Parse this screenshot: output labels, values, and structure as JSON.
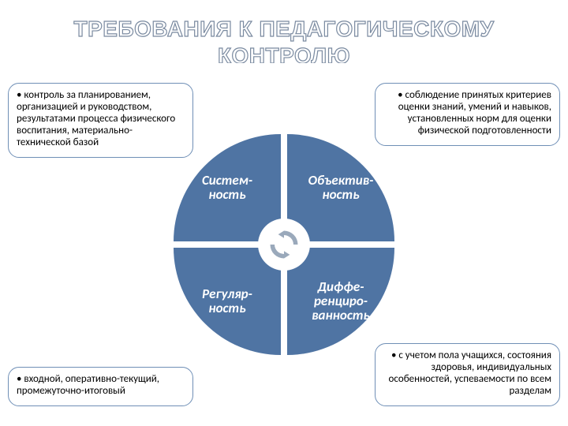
{
  "title_line1": "ТРЕБОВАНИЯ К ПЕДАГОГИЧЕСКОМУ",
  "title_line2": "КОНТРОЛЮ",
  "title_fill": "#ffffff",
  "title_stroke": "#7a8aa0",
  "title_fontsize": 28,
  "circle": {
    "color": "#4f74a3",
    "gap_color": "#ffffff",
    "hub_bg": "#ffffff",
    "arrow_color": "#9aa9bb",
    "quadrants": {
      "tl": "Систем-\nность",
      "tr": "Объектив-\nность",
      "bl": "Регуляр-\nность",
      "br": "Диффе-\nренциро-\nванность"
    },
    "label_fontsize": 17
  },
  "cards": {
    "border_color": "#6f8fb6",
    "font_size": 13,
    "tl": "контроль за планированием, организацией и руководством, результатами процесса физического воспитания, материально-технической базой",
    "tr": "соблюдение принятых критериев оценки знаний, умений и навыков, установленных норм для оценки физической подготовленности",
    "bl": "входной, оперативно-текущий, промежуточно-итоговый",
    "br": "с учетом пола учащихся, состояния здоровья, индивидуальных особенностей, успеваемости по всем разделам"
  }
}
